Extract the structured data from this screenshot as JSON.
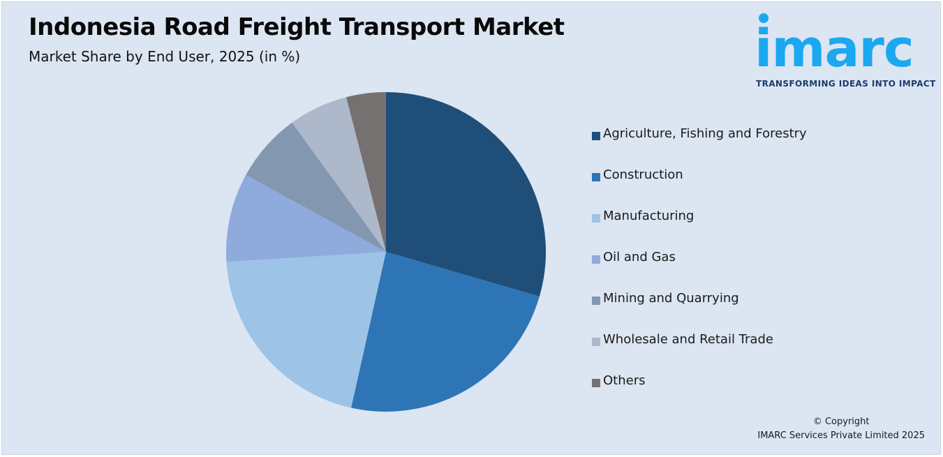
{
  "header": {
    "title": "Indonesia Road Freight Transport Market",
    "subtitle": "Market Share by End User, 2025 (in %)"
  },
  "logo": {
    "word": "imarc",
    "tagline": "TRANSFORMING IDEAS INTO IMPACT"
  },
  "copyright": {
    "line1": "© Copyright",
    "line2": "IMARC Services Private Limited 2025"
  },
  "chart_data": {
    "type": "pie",
    "title": "Indonesia Road Freight Transport Market",
    "subtitle": "Market Share by End User, 2025 (in %)",
    "start_angle_deg": 0,
    "direction": "clockwise",
    "legend_position": "right",
    "categories": [
      "Agriculture, Fishing and Forestry",
      "Construction",
      "Manufacturing",
      "Oil and Gas",
      "Mining and Quarrying",
      "Wholesale and Retail Trade",
      "Others"
    ],
    "values": [
      29.5,
      24.0,
      20.5,
      9.0,
      7.0,
      6.0,
      4.0
    ],
    "colors": [
      "#1f4e79",
      "#2e75b6",
      "#9dc3e6",
      "#8faadc",
      "#8497b0",
      "#adb9ca",
      "#767171"
    ]
  }
}
